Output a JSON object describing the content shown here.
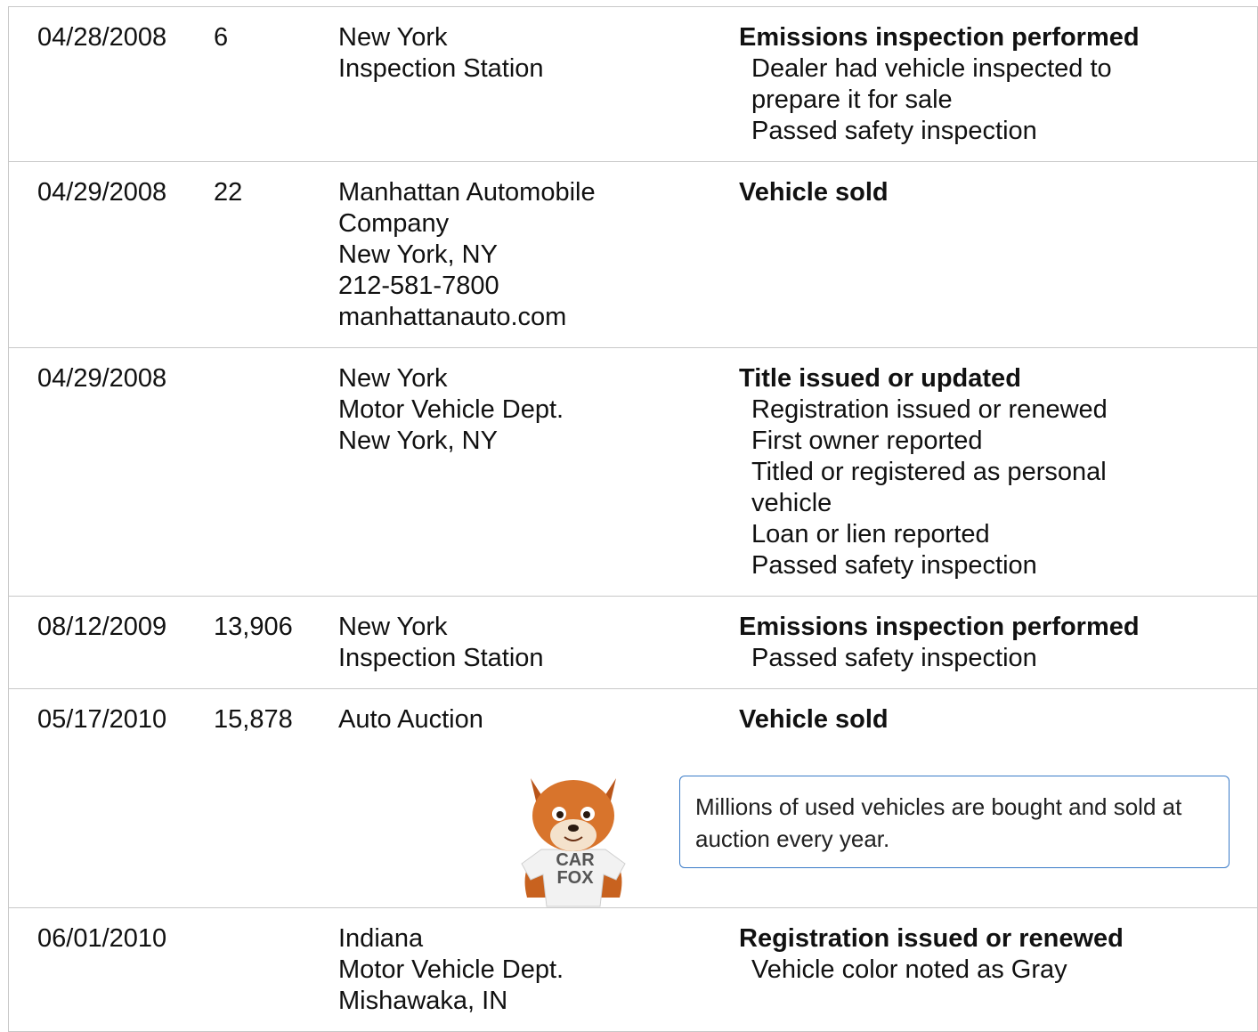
{
  "table": {
    "rows": [
      {
        "date": "04/28/2008",
        "mileage": "6",
        "source": [
          "New York",
          "Inspection Station"
        ],
        "event": {
          "title": "Emissions inspection performed",
          "details": [
            "Dealer had vehicle inspected to",
            "prepare it for sale",
            "Passed safety inspection"
          ]
        }
      },
      {
        "date": "04/29/2008",
        "mileage": "22",
        "source": [
          "Manhattan Automobile",
          "Company",
          "New York, NY",
          "212-581-7800",
          "manhattanauto.com"
        ],
        "event": {
          "title": "Vehicle sold"
        }
      },
      {
        "date": "04/29/2008",
        "source": [
          "New York",
          "Motor Vehicle Dept.",
          "New York, NY"
        ],
        "event": {
          "title": "Title issued or updated",
          "details": [
            "Registration issued or renewed",
            "First owner reported",
            "Titled or registered as personal",
            "vehicle",
            "Loan or lien reported",
            "Passed safety inspection"
          ]
        }
      },
      {
        "date": "08/12/2009",
        "mileage": "13,906",
        "source": [
          "New York",
          "Inspection Station"
        ],
        "event": {
          "title": "Emissions inspection performed",
          "details": [
            "Passed safety inspection"
          ]
        }
      },
      {
        "date": "05/17/2010",
        "mileage": "15,878",
        "source": [
          "Auto Auction"
        ],
        "event": {
          "title": "Vehicle sold"
        },
        "callout": "Millions of used vehicles are bought and sold at auction every year.",
        "fox_shirt": [
          "CAR",
          "FOX"
        ]
      },
      {
        "date": "06/01/2010",
        "source": [
          "Indiana",
          "Motor Vehicle Dept.",
          "Mishawaka, IN"
        ],
        "event": {
          "title": "Registration issued or renewed",
          "details": [
            "Vehicle color noted as Gray"
          ]
        }
      }
    ]
  }
}
